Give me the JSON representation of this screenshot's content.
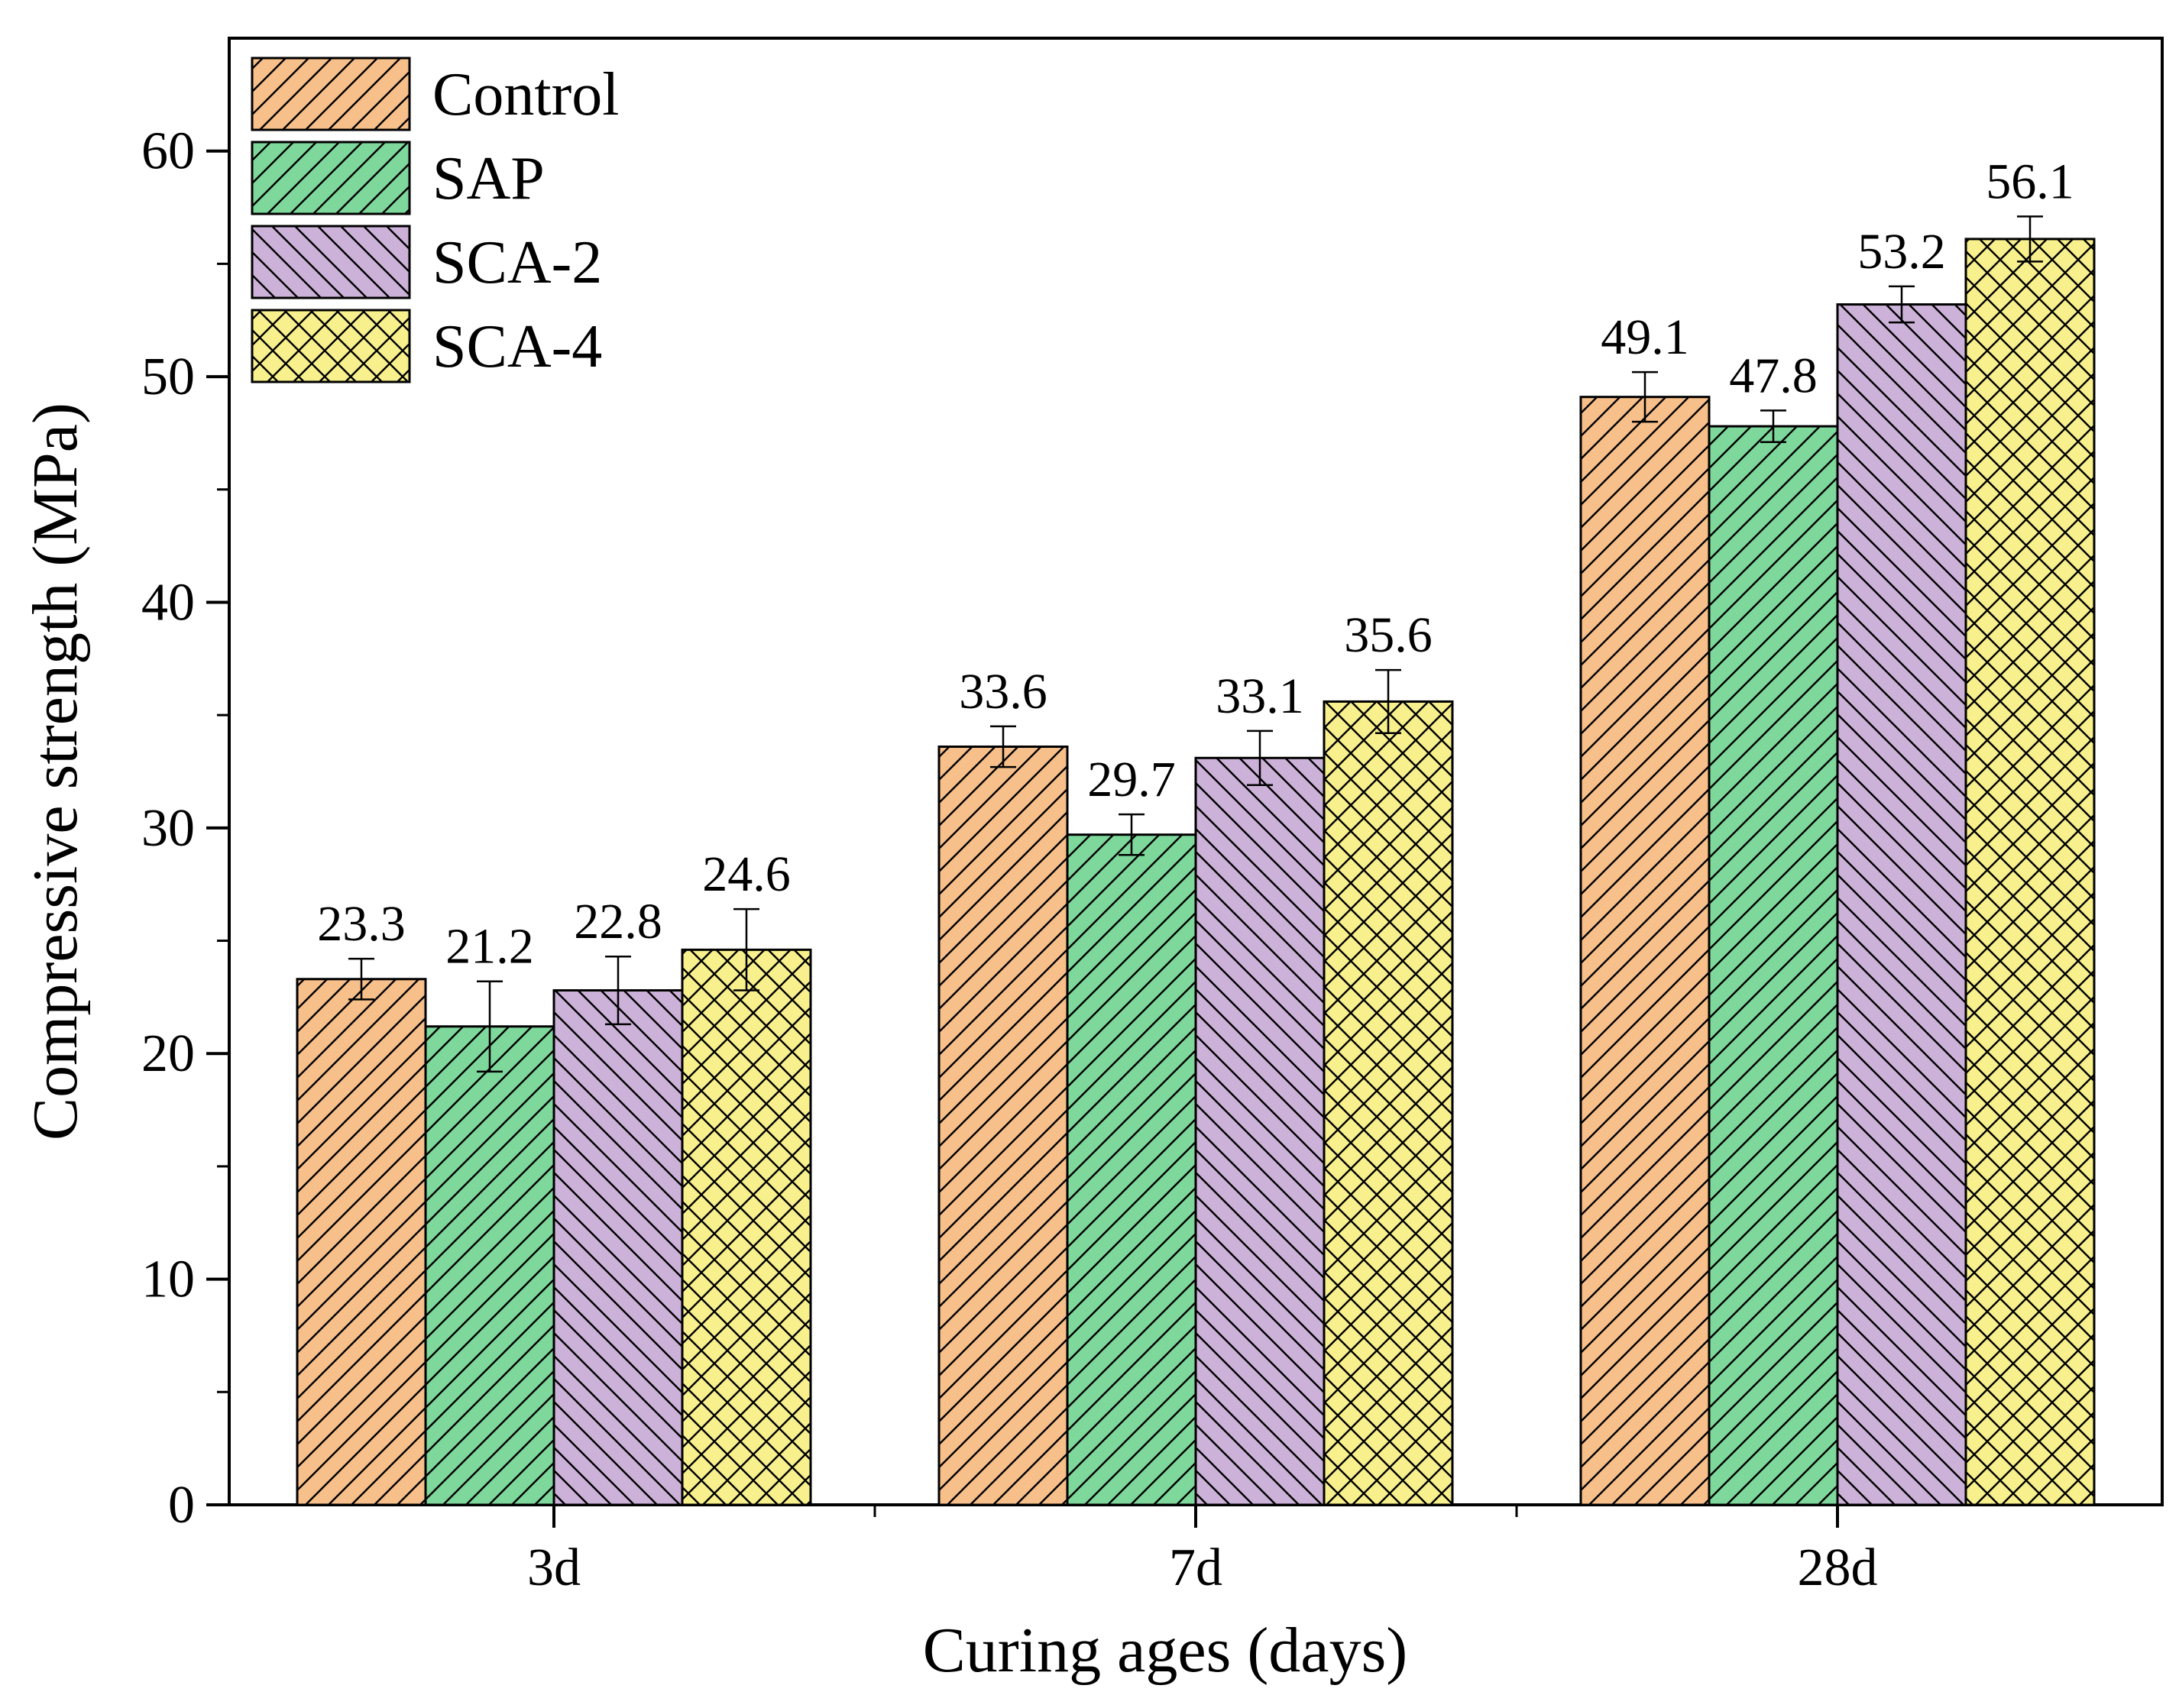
{
  "chart_data": {
    "type": "bar",
    "title": "",
    "xlabel": "Curing ages (days)",
    "ylabel": "Compressive strength (MPa)",
    "ylim": [
      0,
      65
    ],
    "yticks": [
      0,
      10,
      20,
      30,
      40,
      50,
      60
    ],
    "categories": [
      "3d",
      "7d",
      "28d"
    ],
    "series": [
      {
        "name": "Control",
        "values": [
          23.3,
          33.6,
          49.1
        ],
        "errors": [
          0.9,
          0.9,
          1.1
        ],
        "labels": [
          "23.3",
          "33.6",
          "49.1"
        ],
        "color": "#f7bf8a",
        "pattern": "diag-up"
      },
      {
        "name": "SAP",
        "values": [
          21.2,
          29.7,
          47.8
        ],
        "errors": [
          2.0,
          0.9,
          0.7
        ],
        "labels": [
          "21.2",
          "29.7",
          "47.8"
        ],
        "color": "#7ed79b",
        "pattern": "diag-up"
      },
      {
        "name": "SCA-2",
        "values": [
          22.8,
          33.1,
          53.2
        ],
        "errors": [
          1.5,
          1.2,
          0.8
        ],
        "labels": [
          "22.8",
          "33.1",
          "53.2"
        ],
        "color": "#ccb1d8",
        "pattern": "diag-down"
      },
      {
        "name": "SCA-4",
        "values": [
          24.6,
          35.6,
          56.1
        ],
        "errors": [
          1.8,
          1.4,
          1.0
        ],
        "labels": [
          "24.6",
          "35.6",
          "56.1"
        ],
        "color": "#f7f08c",
        "pattern": "crosshatch"
      }
    ],
    "legend": {
      "position": "top-left"
    },
    "grid": false
  }
}
